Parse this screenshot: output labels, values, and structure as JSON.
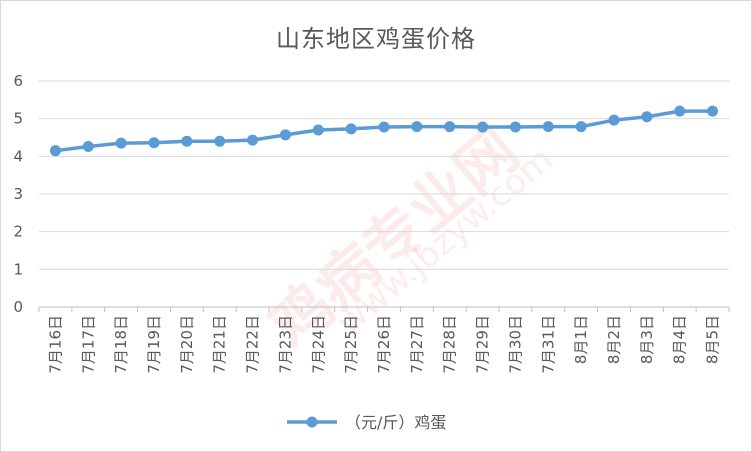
{
  "chart_data": {
    "type": "line",
    "title": "山东地区鸡蛋价格",
    "categories": [
      "7月16日",
      "7月17日",
      "7月18日",
      "7月19日",
      "7月20日",
      "7月21日",
      "7月22日",
      "7月23日",
      "7月24日",
      "7月25日",
      "7月26日",
      "7月27日",
      "7月28日",
      "7月29日",
      "7月30日",
      "7月31日",
      "8月1日",
      "8月2日",
      "8月3日",
      "8月4日",
      "8月5日"
    ],
    "series": [
      {
        "name": "（元/斤）鸡蛋",
        "values": [
          4.15,
          4.26,
          4.35,
          4.36,
          4.4,
          4.4,
          4.43,
          4.57,
          4.7,
          4.73,
          4.78,
          4.79,
          4.79,
          4.78,
          4.78,
          4.79,
          4.79,
          4.96,
          5.05,
          5.2,
          5.2
        ]
      }
    ],
    "ylim": [
      0,
      6
    ],
    "yticks": [
      "0",
      "1",
      "2",
      "3",
      "4",
      "5",
      "6"
    ],
    "grid": true,
    "legend": "bottom",
    "color": "#5b9bd5"
  },
  "watermark": {
    "brand": "鸡病专业网",
    "url": "www.jbzyw.com"
  }
}
